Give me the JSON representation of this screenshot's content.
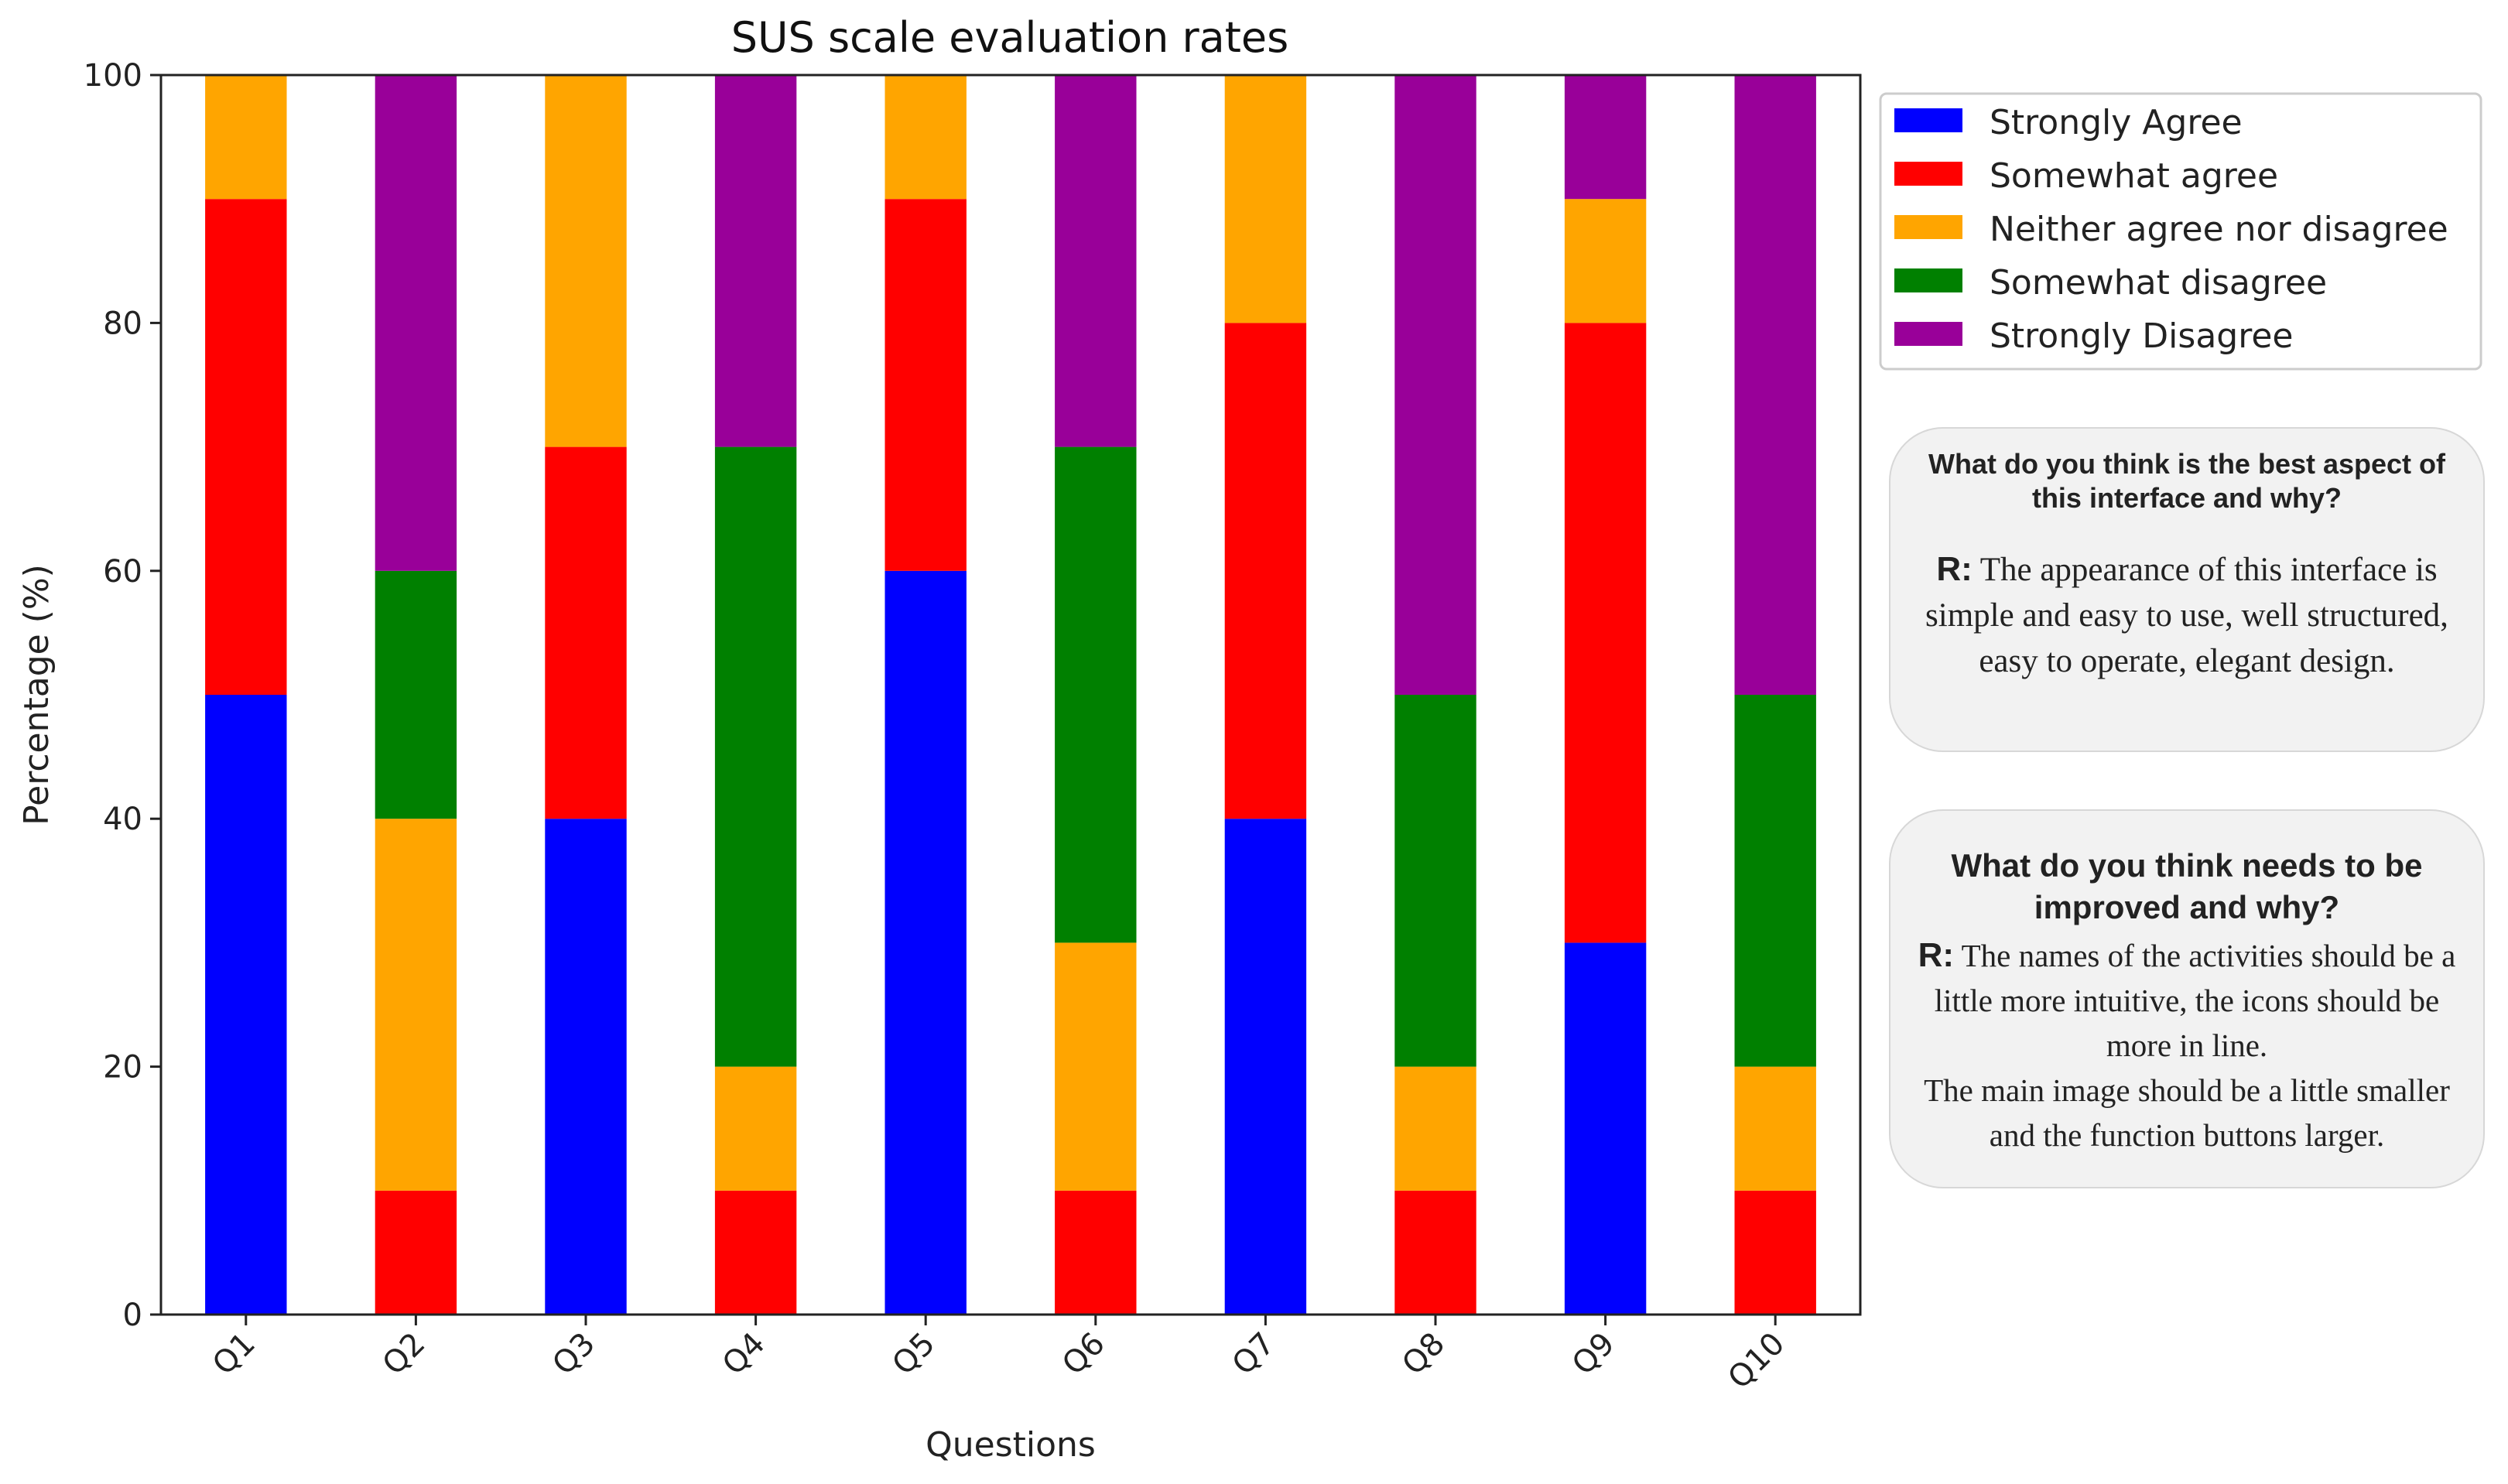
{
  "chart_data": {
    "type": "bar",
    "stacked": true,
    "title": "SUS scale evaluation rates",
    "xlabel": "Questions",
    "ylabel": "Percentage (%)",
    "ylim": [
      0,
      100
    ],
    "yticks": [
      0,
      20,
      40,
      60,
      80,
      100
    ],
    "categories": [
      "Q1",
      "Q2",
      "Q3",
      "Q4",
      "Q5",
      "Q6",
      "Q7",
      "Q8",
      "Q9",
      "Q10"
    ],
    "series": [
      {
        "name": "Strongly Agree",
        "color": "#0000ff",
        "values": [
          50,
          0,
          40,
          0,
          60,
          0,
          40,
          0,
          30,
          0
        ]
      },
      {
        "name": "Somewhat agree",
        "color": "#ff0000",
        "values": [
          40,
          10,
          30,
          10,
          30,
          10,
          40,
          10,
          50,
          10
        ]
      },
      {
        "name": "Neither agree nor disagree",
        "color": "#ffa500",
        "values": [
          10,
          30,
          30,
          10,
          10,
          20,
          20,
          10,
          10,
          10
        ]
      },
      {
        "name": "Somewhat disagree",
        "color": "#008000",
        "values": [
          0,
          20,
          0,
          50,
          0,
          40,
          0,
          30,
          0,
          30
        ]
      },
      {
        "name": "Strongly Disagree",
        "color": "#990099",
        "values": [
          0,
          40,
          0,
          30,
          0,
          30,
          0,
          50,
          10,
          50
        ]
      }
    ],
    "legend": "top-right",
    "grid": false
  },
  "comments": {
    "best": {
      "question": "What do you think is the best aspect of this interface and why?",
      "r_label": "R:",
      "answer": "The appearance of this interface is simple and easy to use, well structured, easy to operate, elegant design."
    },
    "improve": {
      "question": "What do you think needs to be improved and why?",
      "r_label": "R:",
      "answer_line1": "The names of the activities should be a little more intuitive, the icons should be more in line.",
      "answer_line2": "The main image should be a little smaller and the function buttons larger."
    }
  }
}
